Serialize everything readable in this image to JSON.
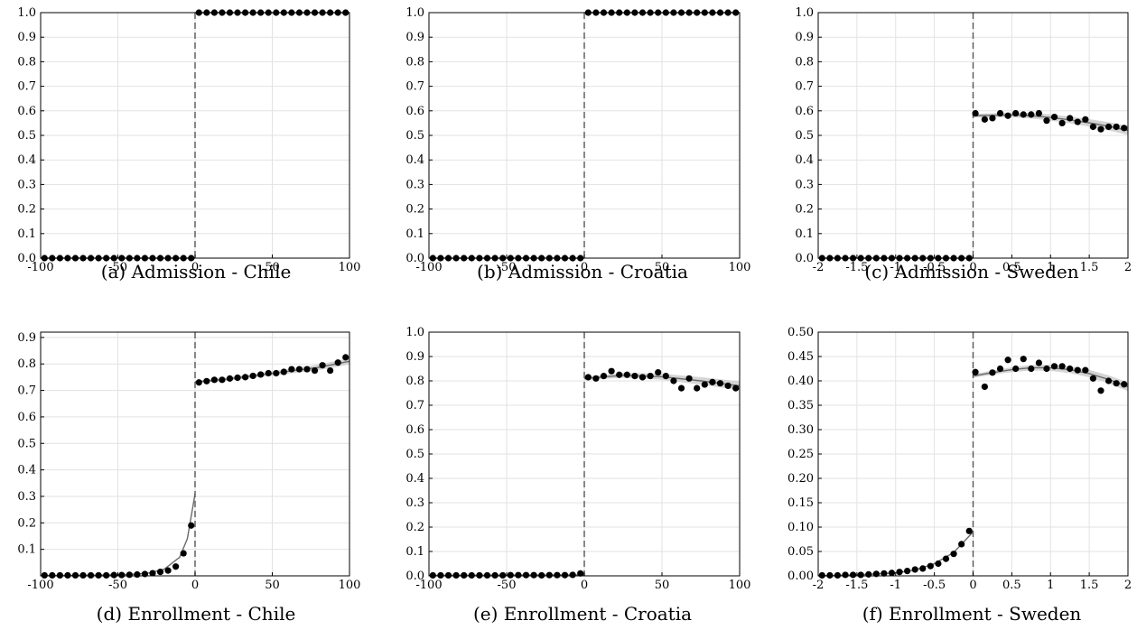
{
  "chart_data": [
    {
      "type": "scatter",
      "caption": "(a) Admission - Chile",
      "xlim": [
        -100,
        100
      ],
      "ylim": [
        0,
        1
      ],
      "xticks": [
        -100,
        -50,
        0,
        50,
        100
      ],
      "xtick_labels": [
        "-100",
        "-50",
        "0",
        "50",
        "100"
      ],
      "yticks": [
        0,
        0.1,
        0.2,
        0.3,
        0.4,
        0.5,
        0.6,
        0.7,
        0.8,
        0.9,
        1.0
      ],
      "ytick_labels": [
        "0.0",
        "0.1",
        "0.2",
        "0.3",
        "0.4",
        "0.5",
        "0.6",
        "0.7",
        "0.8",
        "0.9",
        "1.0"
      ],
      "grid": true,
      "cutoff": 0,
      "points": {
        "x": [
          -97.5,
          -92.5,
          -87.5,
          -82.5,
          -77.5,
          -72.5,
          -67.5,
          -62.5,
          -57.5,
          -52.5,
          -47.5,
          -42.5,
          -37.5,
          -32.5,
          -27.5,
          -22.5,
          -17.5,
          -12.5,
          -7.5,
          -2.5,
          2.5,
          7.5,
          12.5,
          17.5,
          22.5,
          27.5,
          32.5,
          37.5,
          42.5,
          47.5,
          52.5,
          57.5,
          62.5,
          67.5,
          72.5,
          77.5,
          82.5,
          87.5,
          92.5,
          97.5
        ],
        "y": [
          0,
          0,
          0,
          0,
          0,
          0,
          0,
          0,
          0,
          0,
          0,
          0,
          0,
          0,
          0,
          0,
          0,
          0,
          0,
          0,
          1,
          1,
          1,
          1,
          1,
          1,
          1,
          1,
          1,
          1,
          1,
          1,
          1,
          1,
          1,
          1,
          1,
          1,
          1,
          1
        ]
      },
      "fit_left": {
        "x": [
          -100,
          0
        ],
        "y": [
          0,
          0
        ]
      },
      "fit_right": {
        "x": [
          0,
          100
        ],
        "y": [
          1,
          1
        ]
      }
    },
    {
      "type": "scatter",
      "caption": "(b) Admission - Croatia",
      "xlim": [
        -100,
        100
      ],
      "ylim": [
        0,
        1
      ],
      "xticks": [
        -100,
        -50,
        0,
        50,
        100
      ],
      "xtick_labels": [
        "-100",
        "-50",
        "0",
        "50",
        "100"
      ],
      "yticks": [
        0,
        0.1,
        0.2,
        0.3,
        0.4,
        0.5,
        0.6,
        0.7,
        0.8,
        0.9,
        1.0
      ],
      "ytick_labels": [
        "0.0",
        "0.1",
        "0.2",
        "0.3",
        "0.4",
        "0.5",
        "0.6",
        "0.7",
        "0.8",
        "0.9",
        "1.0"
      ],
      "grid": true,
      "cutoff": 0,
      "points": {
        "x": [
          -97.5,
          -92.5,
          -87.5,
          -82.5,
          -77.5,
          -72.5,
          -67.5,
          -62.5,
          -57.5,
          -52.5,
          -47.5,
          -42.5,
          -37.5,
          -32.5,
          -27.5,
          -22.5,
          -17.5,
          -12.5,
          -7.5,
          -2.5,
          2.5,
          7.5,
          12.5,
          17.5,
          22.5,
          27.5,
          32.5,
          37.5,
          42.5,
          47.5,
          52.5,
          57.5,
          62.5,
          67.5,
          72.5,
          77.5,
          82.5,
          87.5,
          92.5,
          97.5
        ],
        "y": [
          0,
          0,
          0,
          0,
          0,
          0,
          0,
          0,
          0,
          0,
          0,
          0,
          0,
          0,
          0,
          0,
          0,
          0,
          0,
          0,
          1,
          1,
          1,
          1,
          1,
          1,
          1,
          1,
          1,
          1,
          1,
          1,
          1,
          1,
          1,
          1,
          1,
          1,
          1,
          1
        ]
      },
      "fit_left": {
        "x": [
          -100,
          0
        ],
        "y": [
          0,
          0
        ]
      },
      "fit_right": {
        "x": [
          0,
          100
        ],
        "y": [
          1,
          1
        ]
      }
    },
    {
      "type": "scatter",
      "caption": "(c) Admission - Sweden",
      "xlim": [
        -2,
        2
      ],
      "ylim": [
        0,
        1
      ],
      "xticks": [
        -2,
        -1.5,
        -1,
        -0.5,
        0,
        0.5,
        1,
        1.5,
        2
      ],
      "xtick_labels": [
        "-2",
        "-1.5",
        "-1",
        "-0.5",
        "0",
        "0.5",
        "1",
        "1.5",
        "2"
      ],
      "yticks": [
        0,
        0.1,
        0.2,
        0.3,
        0.4,
        0.5,
        0.6,
        0.7,
        0.8,
        0.9,
        1.0
      ],
      "ytick_labels": [
        "0.0",
        "0.1",
        "0.2",
        "0.3",
        "0.4",
        "0.5",
        "0.6",
        "0.7",
        "0.8",
        "0.9",
        "1.0"
      ],
      "grid": true,
      "cutoff": 0,
      "points": {
        "x": [
          -1.95,
          -1.85,
          -1.75,
          -1.65,
          -1.55,
          -1.45,
          -1.35,
          -1.25,
          -1.15,
          -1.05,
          -0.95,
          -0.85,
          -0.75,
          -0.65,
          -0.55,
          -0.45,
          -0.35,
          -0.25,
          -0.15,
          -0.05,
          0.03,
          0.15,
          0.25,
          0.35,
          0.45,
          0.55,
          0.65,
          0.75,
          0.85,
          0.95,
          1.05,
          1.15,
          1.25,
          1.35,
          1.45,
          1.55,
          1.65,
          1.75,
          1.85,
          1.95
        ],
        "y": [
          0,
          0,
          0,
          0,
          0,
          0,
          0,
          0,
          0,
          0,
          0,
          0,
          0,
          0,
          0,
          0,
          0,
          0,
          0,
          0,
          0.59,
          0.565,
          0.57,
          0.59,
          0.58,
          0.59,
          0.585,
          0.585,
          0.59,
          0.56,
          0.575,
          0.55,
          0.57,
          0.555,
          0.565,
          0.535,
          0.525,
          0.535,
          0.535,
          0.53
        ]
      },
      "fit_left": {
        "x": [
          -2,
          0
        ],
        "y": [
          0,
          0
        ]
      },
      "fit_right": {
        "x": [
          0,
          0.25,
          0.5,
          0.75,
          1,
          1.25,
          1.5,
          1.75,
          2
        ],
        "y": [
          0.58,
          0.582,
          0.584,
          0.58,
          0.573,
          0.563,
          0.551,
          0.537,
          0.52
        ]
      },
      "band_halfwidth": 0.012
    },
    {
      "type": "scatter",
      "caption": "(d) Enrollment - Chile",
      "xlim": [
        -100,
        100
      ],
      "ylim": [
        0,
        0.92
      ],
      "xticks": [
        -100,
        -50,
        0,
        50,
        100
      ],
      "xtick_labels": [
        "-100",
        "-50",
        "0",
        "50",
        "100"
      ],
      "yticks": [
        0.1,
        0.2,
        0.3,
        0.4,
        0.5,
        0.6,
        0.7,
        0.8,
        0.9
      ],
      "ytick_labels": [
        "0.1",
        "0.2",
        "0.3",
        "0.4",
        "0.5",
        "0.6",
        "0.7",
        "0.8",
        "0.9"
      ],
      "grid": true,
      "cutoff": 0,
      "points": {
        "x": [
          -97.5,
          -92.5,
          -87.5,
          -82.5,
          -77.5,
          -72.5,
          -67.5,
          -62.5,
          -57.5,
          -52.5,
          -47.5,
          -42.5,
          -37.5,
          -32.5,
          -27.5,
          -22.5,
          -17.5,
          -12.5,
          -7.5,
          -2.5,
          2.5,
          7.5,
          12.5,
          17.5,
          22.5,
          27.5,
          32.5,
          37.5,
          42.5,
          47.5,
          52.5,
          57.5,
          62.5,
          67.5,
          72.5,
          77.5,
          82.5,
          87.5,
          92.5,
          97.5
        ],
        "y": [
          0.002,
          0.002,
          0.002,
          0.002,
          0.002,
          0.002,
          0.002,
          0.002,
          0.002,
          0.003,
          0.003,
          0.004,
          0.005,
          0.007,
          0.01,
          0.015,
          0.02,
          0.035,
          0.085,
          0.19,
          0.73,
          0.735,
          0.74,
          0.74,
          0.745,
          0.748,
          0.75,
          0.755,
          0.76,
          0.765,
          0.765,
          0.77,
          0.78,
          0.78,
          0.78,
          0.775,
          0.795,
          0.775,
          0.805,
          0.825
        ]
      },
      "fit_left": {
        "x": [
          -100,
          -80,
          -60,
          -40,
          -30,
          -20,
          -10,
          -5,
          0
        ],
        "y": [
          0.001,
          0.002,
          0.003,
          0.006,
          0.011,
          0.025,
          0.07,
          0.14,
          0.31
        ]
      },
      "fit_right": {
        "x": [
          0,
          20,
          40,
          60,
          80,
          100
        ],
        "y": [
          0.732,
          0.742,
          0.757,
          0.772,
          0.787,
          0.81
        ]
      },
      "band_halfwidth": 0.008
    },
    {
      "type": "scatter",
      "caption": "(e) Enrollment - Croatia",
      "xlim": [
        -100,
        100
      ],
      "ylim": [
        0,
        1
      ],
      "xticks": [
        -100,
        -50,
        0,
        50,
        100
      ],
      "xtick_labels": [
        "-100",
        "-50",
        "0",
        "50",
        "100"
      ],
      "yticks": [
        0,
        0.1,
        0.2,
        0.3,
        0.4,
        0.5,
        0.6,
        0.7,
        0.8,
        0.9,
        1.0
      ],
      "ytick_labels": [
        "0.0",
        "0.1",
        "0.2",
        "0.3",
        "0.4",
        "0.5",
        "0.6",
        "0.7",
        "0.8",
        "0.9",
        "1.0"
      ],
      "grid": true,
      "cutoff": 0,
      "points": {
        "x": [
          -97.5,
          -92.5,
          -87.5,
          -82.5,
          -77.5,
          -72.5,
          -67.5,
          -62.5,
          -57.5,
          -52.5,
          -47.5,
          -42.5,
          -37.5,
          -32.5,
          -27.5,
          -22.5,
          -17.5,
          -12.5,
          -7.5,
          -2.5,
          2.5,
          7.5,
          12.5,
          17.5,
          22.5,
          27.5,
          32.5,
          37.5,
          42.5,
          47.5,
          52.5,
          57.5,
          62.5,
          67.5,
          72.5,
          77.5,
          82.5,
          87.5,
          92.5,
          97.5
        ],
        "y": [
          0.002,
          0.002,
          0.002,
          0.002,
          0.002,
          0.002,
          0.002,
          0.002,
          0.002,
          0.002,
          0.003,
          0.003,
          0.003,
          0.003,
          0.002,
          0.003,
          0.003,
          0.003,
          0.004,
          0.01,
          0.815,
          0.81,
          0.82,
          0.84,
          0.825,
          0.825,
          0.82,
          0.815,
          0.82,
          0.835,
          0.82,
          0.8,
          0.77,
          0.81,
          0.77,
          0.785,
          0.795,
          0.79,
          0.78,
          0.77
        ]
      },
      "fit_left": {
        "x": [
          -100,
          0
        ],
        "y": [
          0.002,
          0.004
        ]
      },
      "fit_right": {
        "x": [
          0,
          25,
          50,
          75,
          100
        ],
        "y": [
          0.81,
          0.823,
          0.817,
          0.8,
          0.78
        ]
      },
      "band_halfwidth": 0.012
    },
    {
      "type": "scatter",
      "caption": "(f) Enrollment - Sweden",
      "xlim": [
        -2,
        2
      ],
      "ylim": [
        0,
        0.5
      ],
      "xticks": [
        -2,
        -1.5,
        -1,
        -0.5,
        0,
        0.5,
        1,
        1.5,
        2
      ],
      "xtick_labels": [
        "-2",
        "-1.5",
        "-1",
        "-0.5",
        "0",
        "0.5",
        "1",
        "1.5",
        "2"
      ],
      "yticks": [
        0,
        0.05,
        0.1,
        0.15,
        0.2,
        0.25,
        0.3,
        0.35,
        0.4,
        0.45,
        0.5
      ],
      "ytick_labels": [
        "0.00",
        "0.05",
        "0.10",
        "0.15",
        "0.20",
        "0.25",
        "0.30",
        "0.35",
        "0.40",
        "0.45",
        "0.50"
      ],
      "grid": true,
      "cutoff": 0,
      "points": {
        "x": [
          -1.95,
          -1.85,
          -1.75,
          -1.65,
          -1.55,
          -1.45,
          -1.35,
          -1.25,
          -1.15,
          -1.05,
          -0.95,
          -0.85,
          -0.75,
          -0.65,
          -0.55,
          -0.45,
          -0.35,
          -0.25,
          -0.15,
          -0.05,
          0.03,
          0.15,
          0.25,
          0.35,
          0.45,
          0.55,
          0.65,
          0.75,
          0.85,
          0.95,
          1.05,
          1.15,
          1.25,
          1.35,
          1.45,
          1.55,
          1.65,
          1.75,
          1.85,
          1.95
        ],
        "y": [
          0.001,
          0.001,
          0.001,
          0.002,
          0.002,
          0.002,
          0.003,
          0.004,
          0.005,
          0.006,
          0.008,
          0.01,
          0.013,
          0.015,
          0.02,
          0.025,
          0.035,
          0.045,
          0.065,
          0.092,
          0.418,
          0.388,
          0.417,
          0.425,
          0.443,
          0.425,
          0.445,
          0.425,
          0.437,
          0.425,
          0.43,
          0.43,
          0.425,
          0.422,
          0.422,
          0.405,
          0.38,
          0.4,
          0.395,
          0.393
        ]
      },
      "fit_left": {
        "x": [
          -2,
          -1.5,
          -1,
          -0.75,
          -0.5,
          -0.25,
          0
        ],
        "y": [
          0.0,
          0.002,
          0.006,
          0.012,
          0.025,
          0.048,
          0.09
        ]
      },
      "fit_right": {
        "x": [
          0,
          0.25,
          0.5,
          0.75,
          1,
          1.25,
          1.5,
          1.75,
          2
        ],
        "y": [
          0.41,
          0.417,
          0.423,
          0.427,
          0.427,
          0.423,
          0.415,
          0.403,
          0.388
        ]
      },
      "band_halfwidth": 0.006
    }
  ]
}
